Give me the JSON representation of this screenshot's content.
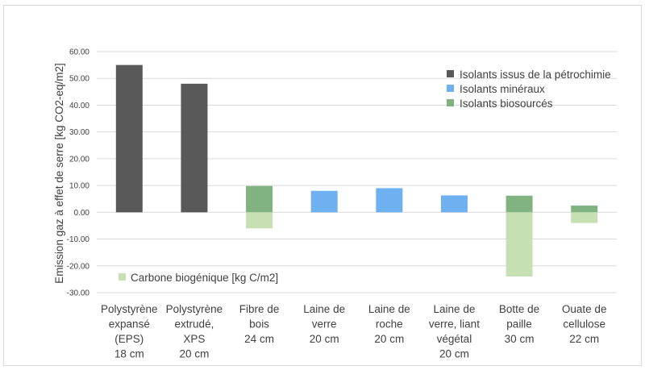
{
  "chart_data": {
    "type": "bar",
    "title": "",
    "ylabel": "Emission gaz à effet de serre [kg CO2-eq/m2]",
    "ylim": [
      -30,
      60
    ],
    "yticks": [
      "60.00",
      "50.00",
      "40.00",
      "30.00",
      "20.00",
      "10.00",
      "0.00",
      "-10.00",
      "-20.00",
      "-30.00"
    ],
    "grid": true,
    "categories": [
      [
        "Polystyrène",
        "expansé",
        "(EPS)",
        "18 cm"
      ],
      [
        "Polystyrène",
        "extrudé,",
        "XPS",
        "20 cm"
      ],
      [
        "Fibre de",
        "bois",
        "24 cm"
      ],
      [
        "Laine de",
        "verre",
        "20 cm"
      ],
      [
        "Laine de",
        "roche",
        "20 cm"
      ],
      [
        "Laine de",
        "verre, liant",
        "végétal",
        "20 cm"
      ],
      [
        "Botte de",
        "paille",
        "30 cm"
      ],
      [
        "Ouate de",
        "cellulose",
        "22 cm"
      ]
    ],
    "series": [
      {
        "name": "Isolants issus de la pétrochimie",
        "color": "#595959",
        "values": [
          55,
          48,
          0,
          0,
          0,
          0,
          0,
          0
        ]
      },
      {
        "name": "Isolants minéraux",
        "color": "#6fb1f0",
        "values": [
          0,
          0,
          0,
          8,
          9,
          6.3,
          0,
          0
        ]
      },
      {
        "name": "Isolants biosourcés",
        "color": "#80b380",
        "values": [
          0,
          0,
          9.8,
          0,
          0,
          0,
          6.2,
          2.5
        ]
      },
      {
        "name": "Carbone biogénique [kg C/m2]",
        "color": "#c6e0b4",
        "values": [
          0,
          0,
          -6,
          0,
          0,
          0,
          -24,
          -4
        ]
      }
    ],
    "legend_top": {
      "placement": "top-right",
      "entries": [
        "Isolants issus de la pétrochimie",
        "Isolants minéraux",
        "Isolants biosourcés"
      ]
    },
    "legend_bottom": {
      "placement": "bottom-left",
      "entries": [
        "Carbone biogénique [kg C/m2]"
      ]
    }
  }
}
